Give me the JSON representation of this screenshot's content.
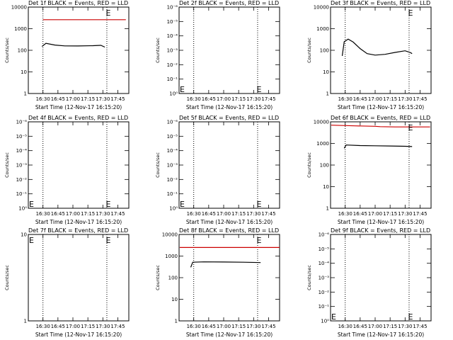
{
  "chart_data": [
    {
      "type": "line",
      "title": "Det 1f BLACK = Events, RED = LLD",
      "xlabel": "Start Time (12-Nov-17 16:15:20)",
      "ylabel": "Counts/sec",
      "yscale": "log",
      "ylim": [
        1,
        10000
      ],
      "ytick_labels": [
        "1",
        "10",
        "100",
        "1000",
        "10000"
      ],
      "x_tick_labels": [
        "16:30",
        "16:45",
        "17:00",
        "17:15",
        "17:30",
        "17:45"
      ],
      "xlim": [
        "16:15:20",
        "17:56"
      ],
      "vlines": [
        "16:30",
        "17:34"
      ],
      "markers": [
        {
          "label": "E",
          "x": "17:33",
          "y": 10000
        }
      ],
      "series": [
        {
          "color": "#cc0000",
          "x": [
            "16:30",
            "17:53"
          ],
          "values": [
            2600,
            2600
          ]
        },
        {
          "color": "#000000",
          "x": [
            "16:29",
            "16:33",
            "16:42",
            "16:52",
            "17:05",
            "17:20",
            "17:28",
            "17:32"
          ],
          "values": [
            150,
            210,
            175,
            160,
            158,
            163,
            170,
            140
          ]
        }
      ]
    },
    {
      "type": "line",
      "title": "Det 2f BLACK = Events, RED = LLD",
      "xlabel": "Start Time (12-Nov-17 16:15:20)",
      "ylabel": "Counts/sec",
      "yscale": "log",
      "ylim": [
        1,
        1e-06
      ],
      "ytick_labels": [
        "10⁰",
        "10⁻¹",
        "10⁻²",
        "10⁻³",
        "10⁻⁴",
        "10⁻⁵",
        "10⁻⁶"
      ],
      "x_tick_labels": [
        "16:30",
        "16:45",
        "17:00",
        "17:15",
        "17:30",
        "17:45"
      ],
      "xlim": [
        "16:15:20",
        "17:56"
      ],
      "vlines": [
        "16:30",
        "17:34"
      ],
      "markers": [
        {
          "label": "E",
          "x": "16:16",
          "y": 1
        },
        {
          "label": "E",
          "x": "17:33",
          "y": 1
        }
      ],
      "series": []
    },
    {
      "type": "line",
      "title": "Det 3f BLACK = Events, RED = LLD",
      "xlabel": "Start Time (12-Nov-17 16:15:20)",
      "ylabel": "Counts/sec",
      "yscale": "log",
      "ylim": [
        1,
        10000
      ],
      "ytick_labels": [
        "1",
        "10",
        "100",
        "1000",
        "10000"
      ],
      "x_tick_labels": [
        "16:30",
        "16:45",
        "17:00",
        "17:15",
        "17:30",
        "17:45"
      ],
      "xlim": [
        "16:15:20",
        "17:56"
      ],
      "vlines": [
        "16:30",
        "17:34"
      ],
      "markers": [
        {
          "label": "E",
          "x": "17:33",
          "y": 10000
        }
      ],
      "series": [
        {
          "color": "#000000",
          "x": [
            "16:27",
            "16:29",
            "16:33",
            "16:38",
            "16:45",
            "16:52",
            "17:00",
            "17:10",
            "17:20",
            "17:30",
            "17:35",
            "17:37"
          ],
          "values": [
            55,
            250,
            330,
            240,
            120,
            70,
            60,
            65,
            80,
            95,
            80,
            70
          ]
        }
      ]
    },
    {
      "type": "line",
      "title": "Det 4f BLACK = Events, RED = LLD",
      "xlabel": "Start Time (12-Nov-17 16:15:20)",
      "ylabel": "Counts/sec",
      "yscale": "log",
      "ylim": [
        1,
        1e-06
      ],
      "ytick_labels": [
        "10⁰",
        "10⁻¹",
        "10⁻²",
        "10⁻³",
        "10⁻⁴",
        "10⁻⁵",
        "10⁻⁶"
      ],
      "x_tick_labels": [
        "16:30",
        "16:45",
        "17:00",
        "17:15",
        "17:30",
        "17:45"
      ],
      "xlim": [
        "16:15:20",
        "17:56"
      ],
      "vlines": [
        "16:30",
        "17:34"
      ],
      "markers": [
        {
          "label": "E",
          "x": "16:16",
          "y": 1
        },
        {
          "label": "E",
          "x": "17:33",
          "y": 1
        }
      ],
      "series": []
    },
    {
      "type": "line",
      "title": "Det 5f BLACK = Events, RED = LLD",
      "xlabel": "Start Time (12-Nov-17 16:15:20)",
      "ylabel": "Counts/sec",
      "yscale": "log",
      "ylim": [
        1,
        1e-06
      ],
      "ytick_labels": [
        "10⁰",
        "10⁻¹",
        "10⁻²",
        "10⁻³",
        "10⁻⁴",
        "10⁻⁵",
        "10⁻⁶"
      ],
      "x_tick_labels": [
        "16:30",
        "16:45",
        "17:00",
        "17:15",
        "17:30",
        "17:45"
      ],
      "xlim": [
        "16:15:20",
        "17:56"
      ],
      "vlines": [
        "16:30",
        "17:34"
      ],
      "markers": [
        {
          "label": "E",
          "x": "16:16",
          "y": 1
        },
        {
          "label": "E",
          "x": "17:33",
          "y": 1
        }
      ],
      "series": []
    },
    {
      "type": "line",
      "title": "Det 6f BLACK = Events, RED = LLD",
      "xlabel": "Start Time (12-Nov-17 16:15:20)",
      "ylabel": "Counts/sec",
      "yscale": "log",
      "ylim": [
        1,
        10000
      ],
      "ytick_labels": [
        "1",
        "10",
        "100",
        "1000",
        "10000"
      ],
      "x_tick_labels": [
        "16:30",
        "16:45",
        "17:00",
        "17:15",
        "17:30",
        "17:45"
      ],
      "xlim": [
        "16:15:20",
        "17:56"
      ],
      "vlines": [
        "16:30",
        "17:34"
      ],
      "markers": [
        {
          "label": "E",
          "x": "17:33",
          "y": 10000
        }
      ],
      "series": [
        {
          "color": "#cc0000",
          "x": [
            "16:16",
            "16:40",
            "17:00",
            "17:05",
            "17:20",
            "17:40",
            "17:55"
          ],
          "values": [
            7000,
            6500,
            6200,
            6000,
            5800,
            5800,
            5800
          ]
        },
        {
          "color": "#000000",
          "x": [
            "16:29",
            "16:31",
            "16:45",
            "17:00",
            "17:15",
            "17:30",
            "17:37"
          ],
          "values": [
            600,
            850,
            800,
            780,
            760,
            740,
            720
          ]
        }
      ]
    },
    {
      "type": "line",
      "title": "Det 7f BLACK = Events, RED = LLD",
      "xlabel": "Start Time (12-Nov-17 16:15:20)",
      "ylabel": "Counts/sec",
      "yscale": "log",
      "ylim": [
        1,
        10
      ],
      "ytick_labels": [
        "1",
        "10"
      ],
      "x_tick_labels": [
        "16:30",
        "16:45",
        "17:00",
        "17:15",
        "17:30",
        "17:45"
      ],
      "xlim": [
        "16:15:20",
        "17:56"
      ],
      "vlines": [
        "16:30",
        "17:34"
      ],
      "markers": [
        {
          "label": "E",
          "x": "16:16",
          "y": 10
        },
        {
          "label": "E",
          "x": "17:33",
          "y": 10
        }
      ],
      "series": []
    },
    {
      "type": "line",
      "title": "Det 8f BLACK = Events, RED = LLD",
      "xlabel": "Start Time (12-Nov-17 16:15:20)",
      "ylabel": "Counts/sec",
      "yscale": "log",
      "ylim": [
        1,
        10000
      ],
      "ytick_labels": [
        "1",
        "10",
        "100",
        "1000",
        "10000"
      ],
      "x_tick_labels": [
        "16:30",
        "16:45",
        "17:00",
        "17:15",
        "17:30",
        "17:45"
      ],
      "xlim": [
        "16:15:20",
        "17:56"
      ],
      "vlines": [
        "16:30",
        "17:34"
      ],
      "markers": [
        {
          "label": "E",
          "x": "17:33",
          "y": 10000
        }
      ],
      "series": [
        {
          "color": "#cc0000",
          "x": [
            "16:16",
            "16:45",
            "17:15",
            "17:45",
            "17:56"
          ],
          "values": [
            2500,
            2500,
            2500,
            2500,
            2500
          ]
        },
        {
          "color": "#000000",
          "x": [
            "16:27",
            "16:29",
            "16:40",
            "17:00",
            "17:20",
            "17:37"
          ],
          "values": [
            300,
            520,
            540,
            530,
            520,
            500
          ]
        }
      ]
    },
    {
      "type": "line",
      "title": "Det 9f BLACK = Events, RED = LLD",
      "xlabel": "Start Time (12-Nov-17 16:15:20)",
      "ylabel": "Counts/sec",
      "yscale": "log",
      "ylim": [
        1,
        1e-06
      ],
      "ytick_labels": [
        "10⁰",
        "10⁻¹",
        "10⁻²",
        "10⁻³",
        "10⁻⁴",
        "10⁻⁵",
        "10⁻⁶"
      ],
      "x_tick_labels": [
        "16:30",
        "16:45",
        "17:00",
        "17:15",
        "17:30",
        "17:45"
      ],
      "xlim": [
        "16:15:20",
        "17:56"
      ],
      "vlines": [
        "16:30",
        "17:34"
      ],
      "markers": [
        {
          "label": "E",
          "x": "16:16",
          "y": 1
        },
        {
          "label": "E",
          "x": "17:33",
          "y": 1
        }
      ],
      "series": []
    }
  ]
}
